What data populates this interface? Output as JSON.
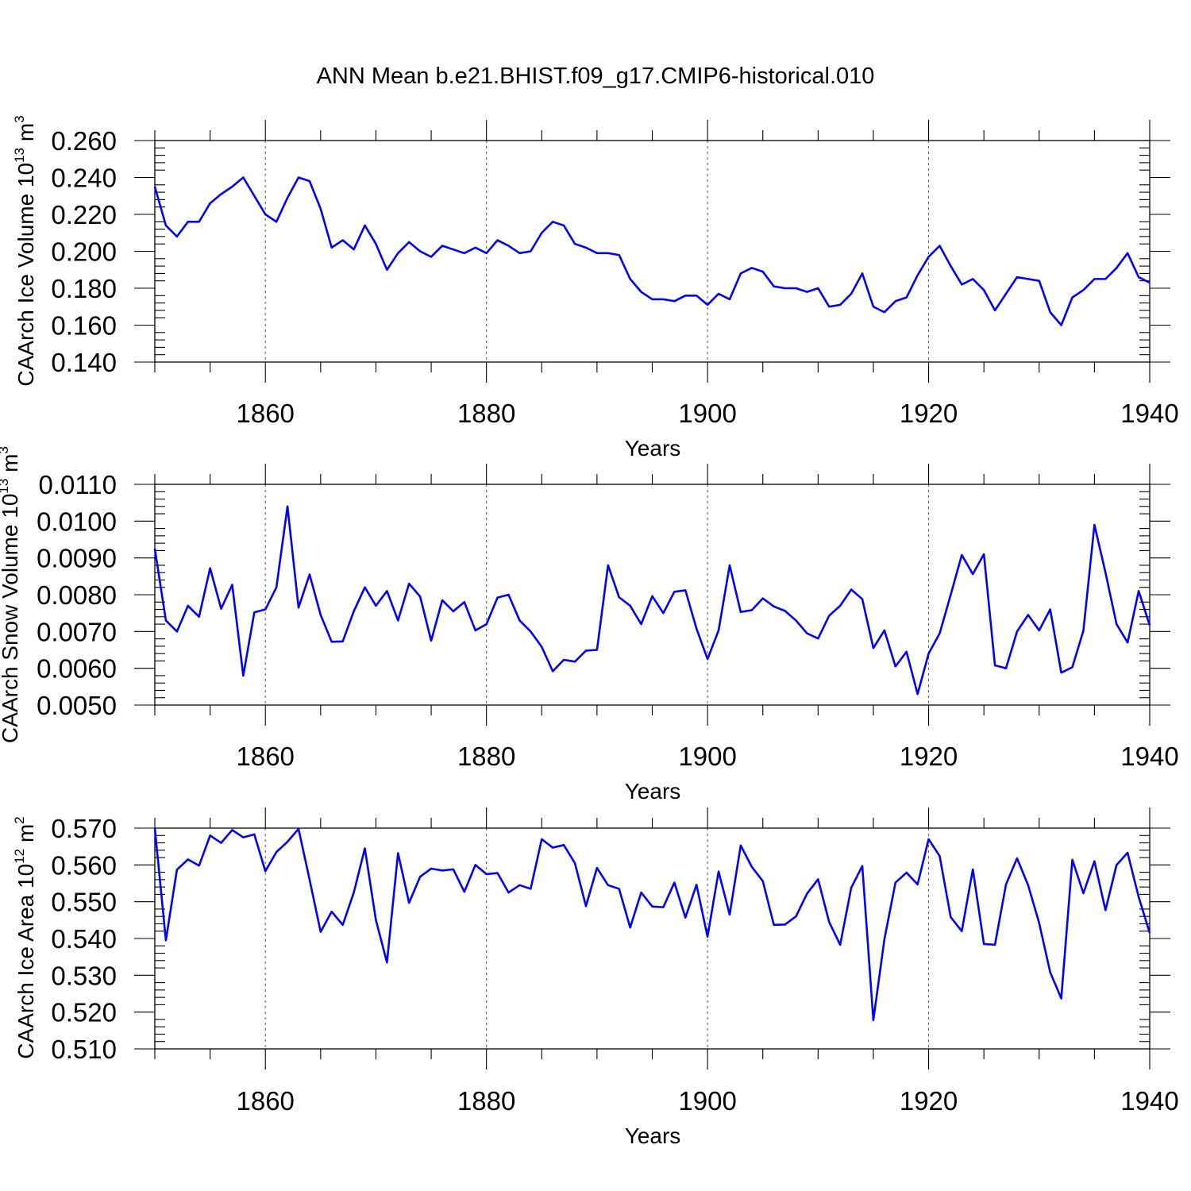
{
  "title": "ANN Mean b.e21.BHIST.f09_g17.CMIP6-historical.010",
  "colors": {
    "series": "#0000ff",
    "axis": "#000000",
    "grid": "#555555"
  },
  "chart_data": [
    {
      "type": "line",
      "ylabel": "CAArch Ice Volume 10",
      "ylabel_exp": "13",
      "ylabel_unit": " m",
      "ylabel_unit_exp": "3",
      "xlabel": "Years",
      "xlim": [
        1850,
        1940
      ],
      "ylim": [
        0.14,
        0.26
      ],
      "yticks": [
        0.14,
        0.16,
        0.18,
        0.2,
        0.22,
        0.24,
        0.26
      ],
      "ytick_labels": [
        "0.140",
        "0.160",
        "0.180",
        "0.200",
        "0.220",
        "0.240",
        "0.260"
      ],
      "xticks": [
        1860,
        1880,
        1900,
        1920,
        1940
      ],
      "xtick_labels": [
        "1860",
        "1880",
        "1900",
        "1920",
        "1940"
      ],
      "grid": "dashed vertical lines at major x ticks",
      "x_start": 1850,
      "values": [
        0.235,
        0.214,
        0.208,
        0.216,
        0.216,
        0.226,
        0.231,
        0.235,
        0.24,
        0.23,
        0.22,
        0.216,
        0.229,
        0.24,
        0.238,
        0.223,
        0.202,
        0.206,
        0.201,
        0.214,
        0.204,
        0.19,
        0.199,
        0.205,
        0.2,
        0.197,
        0.203,
        0.201,
        0.199,
        0.202,
        0.199,
        0.206,
        0.203,
        0.199,
        0.2,
        0.21,
        0.216,
        0.214,
        0.204,
        0.202,
        0.199,
        0.199,
        0.198,
        0.185,
        0.178,
        0.174,
        0.174,
        0.173,
        0.176,
        0.176,
        0.171,
        0.177,
        0.174,
        0.188,
        0.191,
        0.189,
        0.181,
        0.18,
        0.18,
        0.178,
        0.18,
        0.17,
        0.171,
        0.177,
        0.188,
        0.17,
        0.167,
        0.173,
        0.175,
        0.187,
        0.197,
        0.203,
        0.192,
        0.182,
        0.185,
        0.179,
        0.168,
        0.177,
        0.186,
        0.185,
        0.184,
        0.167,
        0.16,
        0.175,
        0.179,
        0.185,
        0.185,
        0.191,
        0.199,
        0.186,
        0.183
      ]
    },
    {
      "type": "line",
      "ylabel": "CAArch Snow Volume 10",
      "ylabel_exp": "13",
      "ylabel_unit": " m",
      "ylabel_unit_exp": "3",
      "xlabel": "Years",
      "xlim": [
        1850,
        1940
      ],
      "ylim": [
        0.005,
        0.011
      ],
      "yticks": [
        0.005,
        0.006,
        0.007,
        0.008,
        0.009,
        0.01,
        0.011
      ],
      "ytick_labels": [
        "0.0050",
        "0.0060",
        "0.0070",
        "0.0080",
        "0.0090",
        "0.0100",
        "0.0110"
      ],
      "xticks": [
        1860,
        1880,
        1900,
        1920,
        1940
      ],
      "xtick_labels": [
        "1860",
        "1880",
        "1900",
        "1920",
        "1940"
      ],
      "grid": "dashed vertical lines at major x ticks",
      "x_start": 1850,
      "values": [
        0.00925,
        0.0073,
        0.007,
        0.0077,
        0.0074,
        0.00872,
        0.00762,
        0.00827,
        0.0058,
        0.00752,
        0.0076,
        0.0082,
        0.0104,
        0.00765,
        0.00855,
        0.00745,
        0.00672,
        0.00673,
        0.00755,
        0.0082,
        0.0077,
        0.0081,
        0.0073,
        0.0083,
        0.00795,
        0.00675,
        0.00785,
        0.00755,
        0.0078,
        0.00703,
        0.0072,
        0.00792,
        0.008,
        0.0073,
        0.007,
        0.00658,
        0.00592,
        0.00623,
        0.00618,
        0.00648,
        0.0065,
        0.0088,
        0.00793,
        0.0077,
        0.0072,
        0.00796,
        0.0075,
        0.00808,
        0.00812,
        0.00708,
        0.00625,
        0.00703,
        0.0088,
        0.00753,
        0.00758,
        0.0079,
        0.00768,
        0.00756,
        0.0073,
        0.00695,
        0.00681,
        0.00743,
        0.0077,
        0.00814,
        0.00788,
        0.00655,
        0.00703,
        0.00605,
        0.00645,
        0.0053,
        0.0064,
        0.00695,
        0.008,
        0.00908,
        0.00856,
        0.0091,
        0.00608,
        0.006,
        0.007,
        0.00745,
        0.00703,
        0.0076,
        0.00588,
        0.00603,
        0.00702,
        0.0099,
        0.0086,
        0.0072,
        0.0067,
        0.0081,
        0.00717
      ]
    },
    {
      "type": "line",
      "ylabel": "CAArch Ice Area 10",
      "ylabel_exp": "12",
      "ylabel_unit": " m",
      "ylabel_unit_exp": "2",
      "xlabel": "Years",
      "xlim": [
        1850,
        1940
      ],
      "ylim": [
        0.51,
        0.57
      ],
      "yticks": [
        0.51,
        0.52,
        0.53,
        0.54,
        0.55,
        0.56,
        0.57
      ],
      "ytick_labels": [
        "0.510",
        "0.520",
        "0.530",
        "0.540",
        "0.550",
        "0.560",
        "0.570"
      ],
      "xticks": [
        1860,
        1880,
        1900,
        1920,
        1940
      ],
      "xtick_labels": [
        "1860",
        "1880",
        "1900",
        "1920",
        "1940"
      ],
      "grid": "dashed vertical lines at major x ticks",
      "x_start": 1850,
      "values": [
        0.57,
        0.5395,
        0.5587,
        0.5615,
        0.5598,
        0.568,
        0.566,
        0.5695,
        0.5675,
        0.5683,
        0.5583,
        0.5635,
        0.5663,
        0.5698,
        0.556,
        0.5418,
        0.5473,
        0.5437,
        0.5525,
        0.5645,
        0.545,
        0.5335,
        0.5632,
        0.5497,
        0.5568,
        0.559,
        0.5585,
        0.5588,
        0.5527,
        0.56,
        0.5575,
        0.5578,
        0.5525,
        0.5545,
        0.5535,
        0.567,
        0.5647,
        0.5654,
        0.5605,
        0.5488,
        0.5592,
        0.5545,
        0.5535,
        0.543,
        0.5525,
        0.5487,
        0.5485,
        0.5552,
        0.5457,
        0.5546,
        0.5405,
        0.5582,
        0.5465,
        0.5653,
        0.5595,
        0.5556,
        0.5437,
        0.5438,
        0.546,
        0.5522,
        0.5561,
        0.5445,
        0.5383,
        0.5538,
        0.5597,
        0.5178,
        0.5398,
        0.5552,
        0.5579,
        0.5547,
        0.567,
        0.5624,
        0.5458,
        0.542,
        0.5588,
        0.5385,
        0.5383,
        0.5547,
        0.5618,
        0.5545,
        0.5442,
        0.5308,
        0.5237,
        0.5614,
        0.5523,
        0.561,
        0.5477,
        0.56,
        0.5633,
        0.5513,
        0.5415
      ]
    }
  ]
}
